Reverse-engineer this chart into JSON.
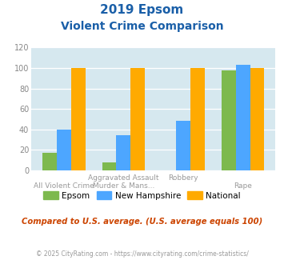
{
  "title_line1": "2019 Epsom",
  "title_line2": "Violent Crime Comparison",
  "epsom": [
    17,
    8,
    0,
    98
  ],
  "new_hampshire": [
    40,
    34,
    48,
    103
  ],
  "national": [
    100,
    100,
    100,
    100
  ],
  "epsom_color": "#7db94e",
  "nh_color": "#4da6ff",
  "national_color": "#ffaa00",
  "bg_color": "#d6e8ef",
  "title_color": "#1a5fa8",
  "xlabel_top_color": "#999999",
  "xlabel_bot_color": "#b8860b",
  "note_color": "#cc4400",
  "footer_color": "#999999",
  "ytick_color": "#888888",
  "ylim": [
    0,
    120
  ],
  "yticks": [
    0,
    20,
    40,
    60,
    80,
    100,
    120
  ],
  "note": "Compared to U.S. average. (U.S. average equals 100)",
  "footer": "© 2025 CityRating.com - https://www.cityrating.com/crime-statistics/",
  "legend_labels": [
    "Epsom",
    "New Hampshire",
    "National"
  ],
  "x_top_labels": [
    "",
    "Aggravated Assault",
    "Robbery",
    ""
  ],
  "x_bottom_labels": [
    "All Violent Crime",
    "Murder & Mans...",
    "",
    "Rape"
  ]
}
